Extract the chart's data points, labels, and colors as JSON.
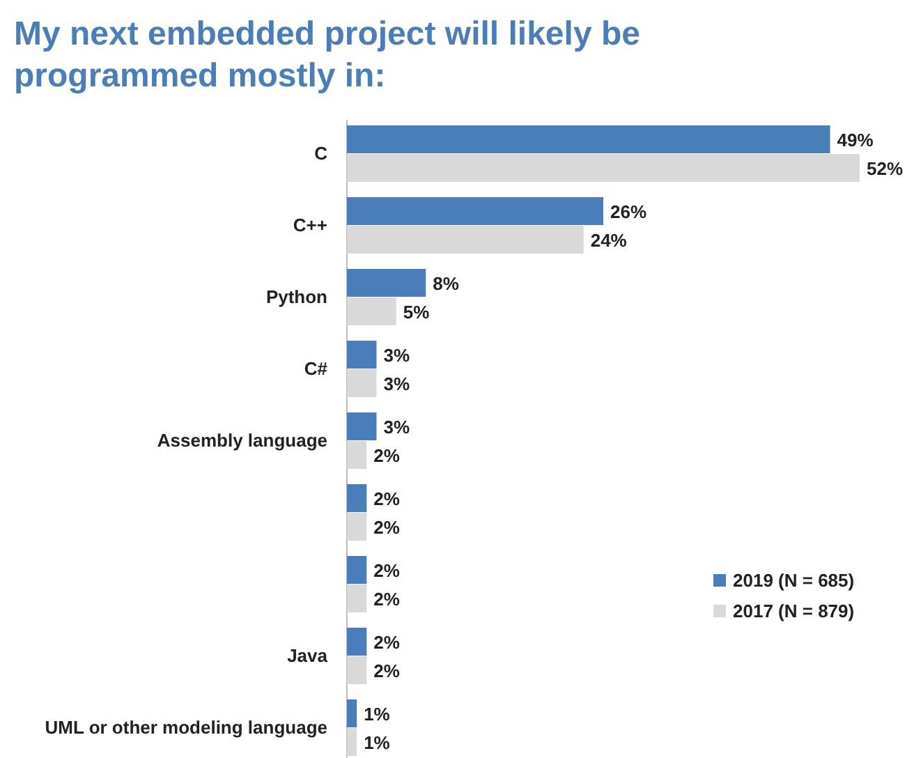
{
  "chart_data": {
    "type": "bar",
    "orientation": "horizontal",
    "title": "My next embedded project will likely be programmed mostly in:",
    "categories": [
      "C",
      "C++",
      "Python",
      "C#",
      "Assembly language",
      null,
      null,
      "Java",
      "UML or other modeling language"
    ],
    "series": [
      {
        "name": "2019 (N = 685)",
        "color": "#4a7ebb",
        "values": [
          49,
          26,
          8,
          3,
          3,
          2,
          2,
          2,
          1
        ],
        "value_labels": [
          "49%",
          "26%",
          "8%",
          "3%",
          "3%",
          "2%",
          "2%",
          "2%",
          "1%"
        ]
      },
      {
        "name": "2017 (N = 879)",
        "color": "#d9d9d9",
        "values": [
          52,
          24,
          5,
          3,
          2,
          2,
          2,
          2,
          1
        ],
        "value_labels": [
          "52%",
          "24%",
          "5%",
          "3%",
          "2%",
          "2%",
          "2%",
          "2%",
          "1%"
        ]
      }
    ],
    "legend": "bottom right"
  }
}
